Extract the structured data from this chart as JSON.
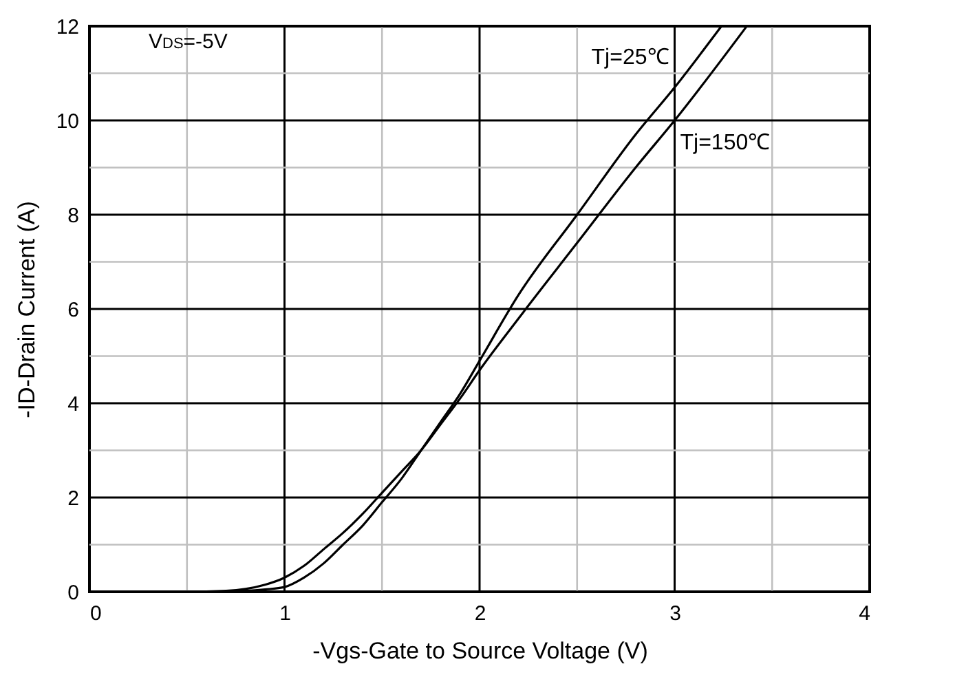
{
  "chart_data": {
    "type": "line",
    "xlabel": "-Vgs-Gate to Source Voltage (V)",
    "ylabel": "-ID-Drain Current (A)",
    "annotations": [
      "V$_{DS}$=-5V"
    ],
    "xlim": [
      0,
      4
    ],
    "xticks": [
      0,
      {
        "value": 0.5,
        "label": null
      },
      1,
      {
        "value": 1.5,
        "label": null
      },
      2,
      {
        "value": 2.5,
        "label": null
      },
      3,
      {
        "value": 3.5,
        "label": null
      },
      4
    ],
    "ylim": [
      0,
      12
    ],
    "yticks": [
      0,
      {
        "value": 1,
        "label": null
      },
      2,
      {
        "value": 3,
        "label": null
      },
      4,
      {
        "value": 5,
        "label": null
      },
      6,
      {
        "value": 7,
        "label": null
      },
      8,
      {
        "value": 9,
        "label": null
      },
      10,
      {
        "value": 11,
        "label": null
      },
      12
    ],
    "grid": true,
    "marker": "none",
    "line_style": "solid",
    "series": [
      {
        "name": "Tj=25℃",
        "color": "#000000",
        "x": [
          0.1,
          0.6,
          0.8,
          0.9,
          1.0,
          1.1,
          1.2,
          1.3,
          1.4,
          1.5,
          1.6,
          1.7,
          1.8,
          1.9,
          2.0,
          2.2,
          2.5,
          2.8,
          3.0,
          3.24
        ],
        "values": [
          0,
          0,
          0.02,
          0.05,
          0.1,
          0.3,
          0.6,
          1.0,
          1.4,
          1.9,
          2.4,
          3.0,
          3.6,
          4.2,
          4.9,
          6.3,
          8.0,
          9.7,
          10.7,
          12
        ]
      },
      {
        "name": "Tj=150℃",
        "color": "#000000",
        "x": [
          0.1,
          0.5,
          0.7,
          0.8,
          0.9,
          1.0,
          1.1,
          1.2,
          1.3,
          1.4,
          1.5,
          1.6,
          1.7,
          1.8,
          1.9,
          2.0,
          2.2,
          2.5,
          2.8,
          3.0,
          3.37
        ],
        "values": [
          0,
          0,
          0.02,
          0.06,
          0.15,
          0.3,
          0.55,
          0.9,
          1.25,
          1.65,
          2.1,
          2.55,
          3.0,
          3.55,
          4.1,
          4.7,
          5.8,
          7.4,
          9.0,
          10.0,
          12
        ]
      }
    ]
  }
}
